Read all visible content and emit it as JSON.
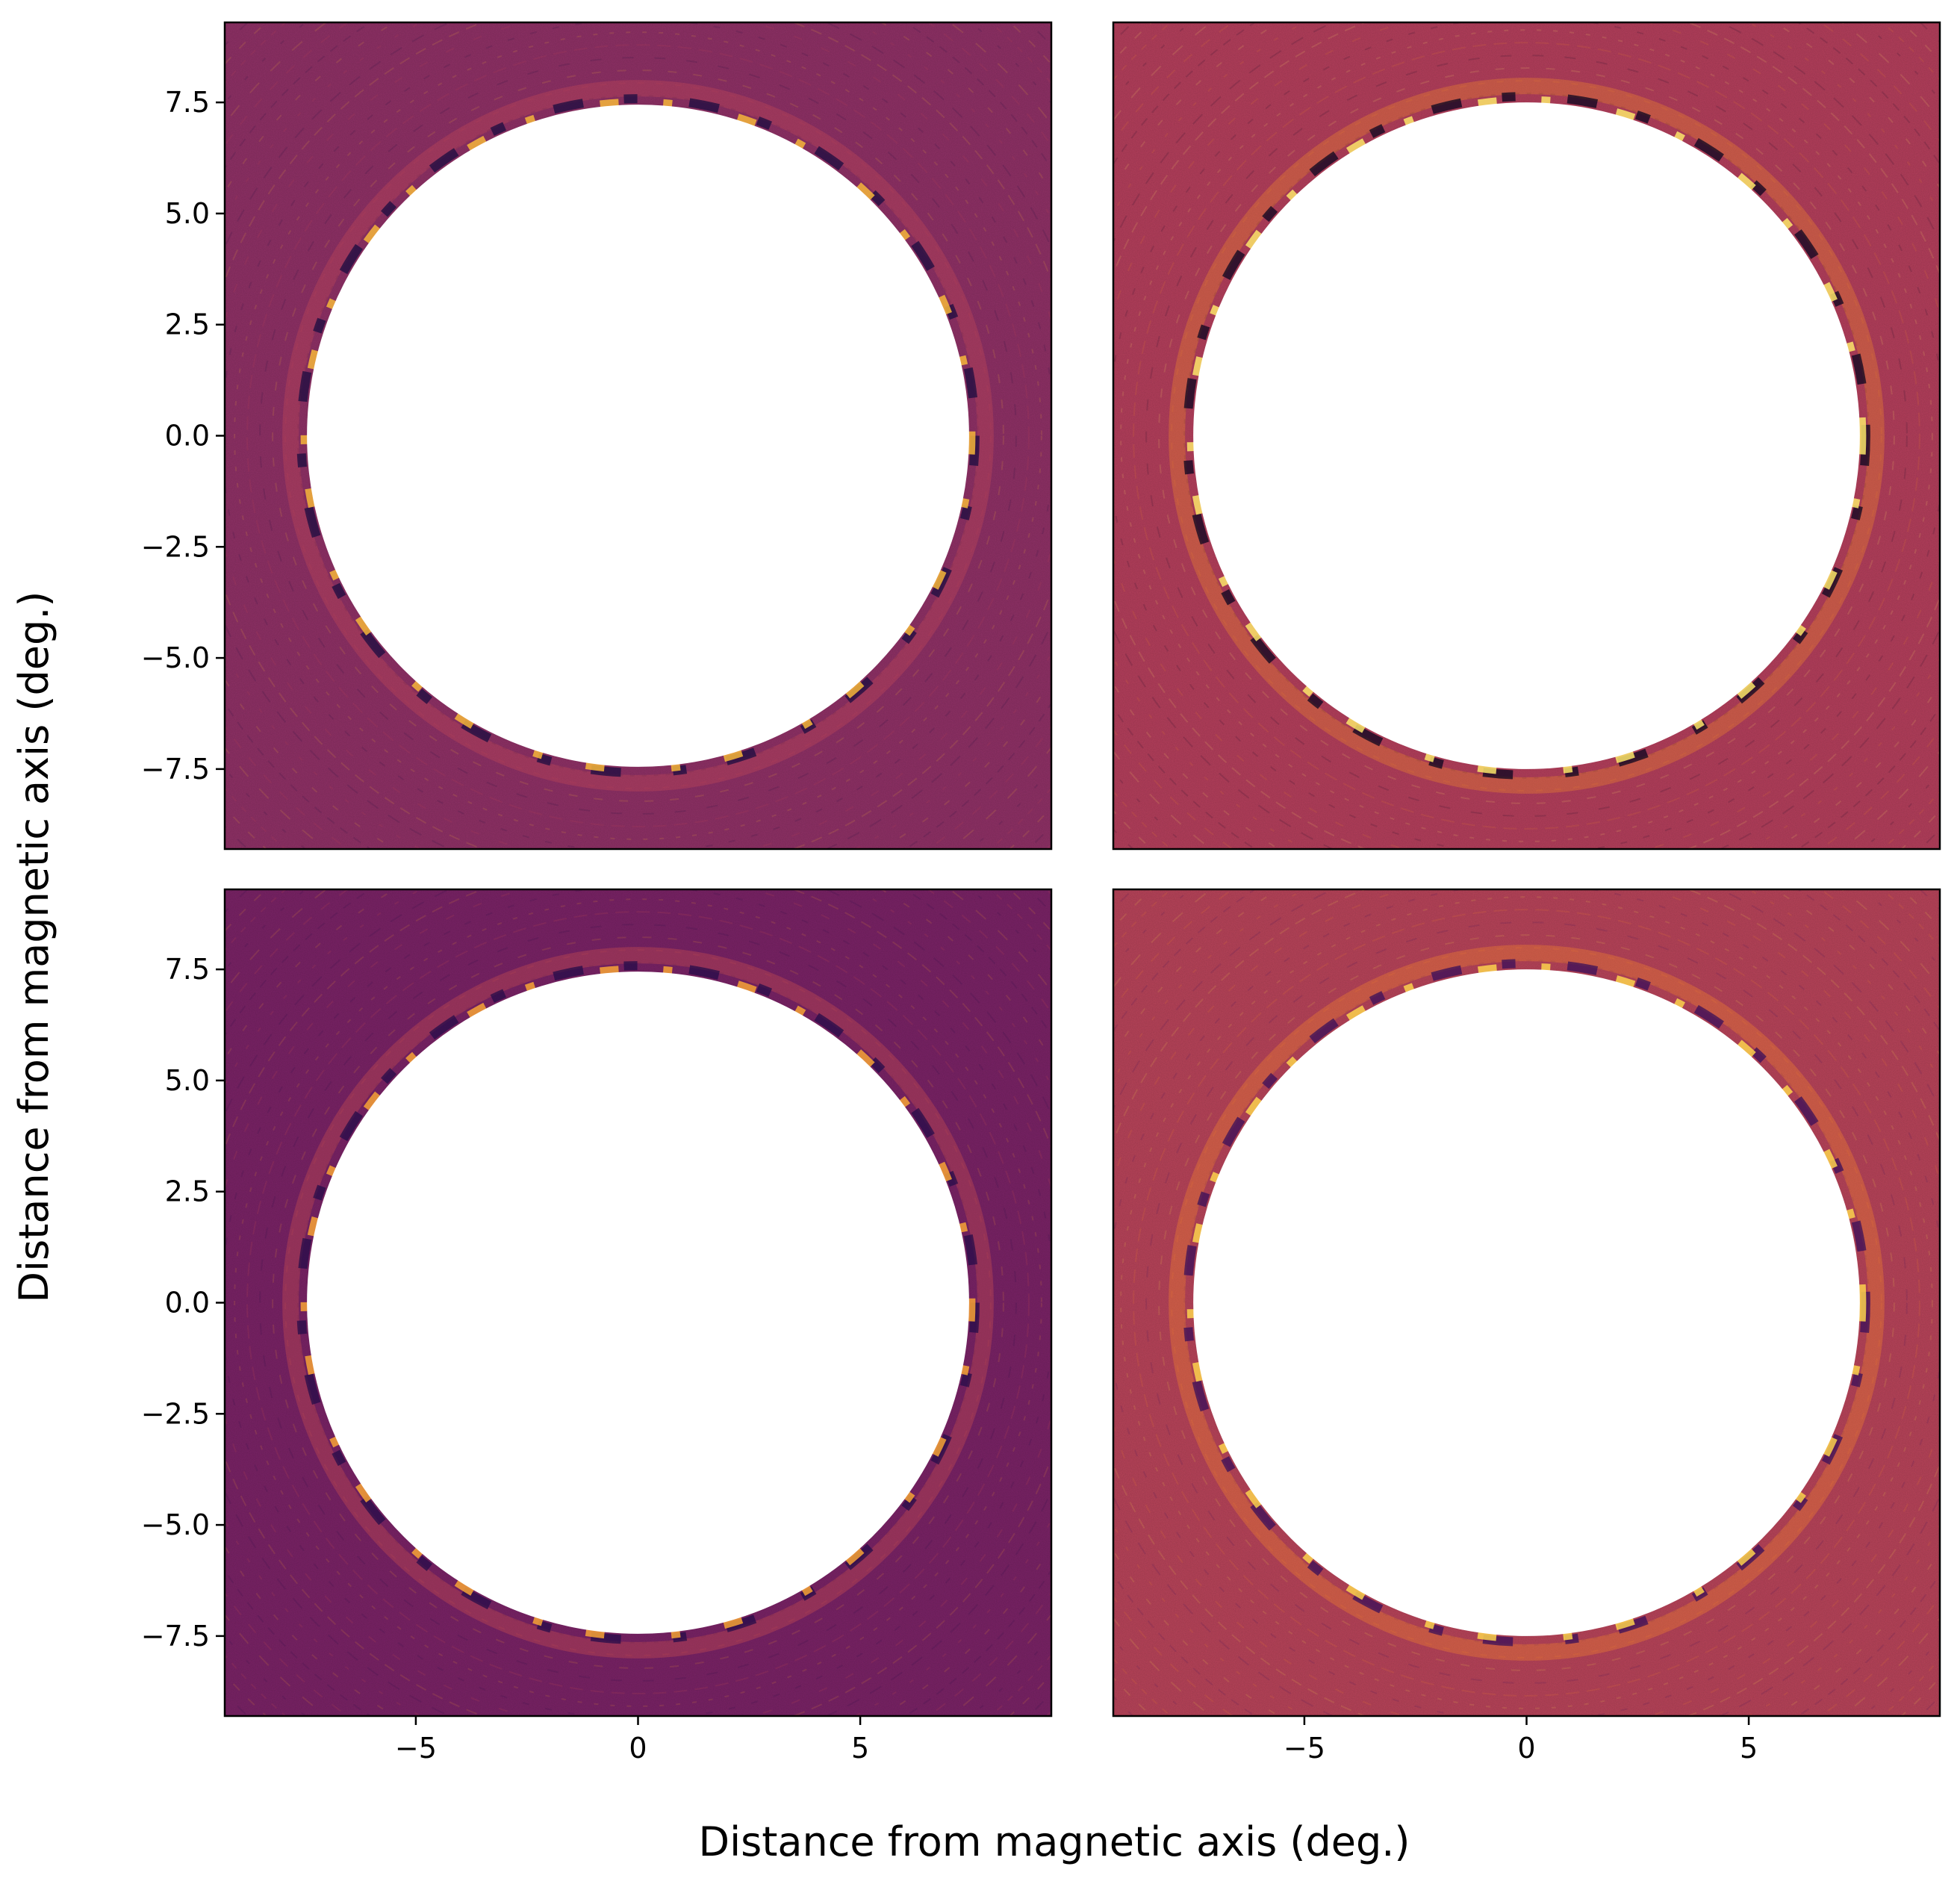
{
  "figure": {
    "xlabel": "Distance from magnetic axis (deg.)",
    "ylabel": "Distance from magnetic axis (deg.)"
  },
  "chart_data": [
    {
      "type": "heatmap",
      "panel": "top-left",
      "xlim": [
        -9.3,
        9.3
      ],
      "ylim": [
        -9.3,
        9.3
      ],
      "xticks": [],
      "yticks": [
        7.5,
        5.0,
        2.5,
        0.0,
        -2.5,
        -5.0,
        -7.5
      ],
      "yticklabels": [
        "7.5",
        "5.0",
        "2.5",
        "0.0",
        "−2.5",
        "−5.0",
        "−7.5"
      ],
      "masked_disk_radius": 7.45,
      "colormap": "inferno",
      "background_color": "#8f3166",
      "ring_colors": [
        "#f6b63a",
        "#1b0c40",
        "#c64a55"
      ],
      "grid": false
    },
    {
      "type": "heatmap",
      "panel": "top-right",
      "xlim": [
        -9.3,
        9.3
      ],
      "ylim": [
        -9.3,
        9.3
      ],
      "xticks": [],
      "yticks": [],
      "masked_disk_radius": 7.5,
      "colormap": "inferno",
      "background_color": "#b43f5c",
      "ring_colors": [
        "#fce66a",
        "#0b0620",
        "#f08a2a"
      ],
      "grid": false
    },
    {
      "type": "heatmap",
      "panel": "bottom-left",
      "xlim": [
        -9.3,
        9.3
      ],
      "ylim": [
        -9.3,
        9.3
      ],
      "xticks": [
        -5,
        0,
        5
      ],
      "xticklabels": [
        "−5",
        "0",
        "5"
      ],
      "yticks": [
        7.5,
        5.0,
        2.5,
        0.0,
        -2.5,
        -5.0,
        -7.5
      ],
      "yticklabels": [
        "7.5",
        "5.0",
        "2.5",
        "0.0",
        "−2.5",
        "−5.0",
        "−7.5"
      ],
      "masked_disk_radius": 7.45,
      "colormap": "inferno",
      "background_color": "#7a2366",
      "ring_colors": [
        "#f7a335",
        "#250c4a",
        "#d1524e"
      ],
      "grid": false
    },
    {
      "type": "heatmap",
      "panel": "bottom-right",
      "xlim": [
        -9.3,
        9.3
      ],
      "ylim": [
        -9.3,
        9.3
      ],
      "xticks": [
        -5,
        0,
        5
      ],
      "xticklabels": [
        "−5",
        "0",
        "5"
      ],
      "yticks": [],
      "masked_disk_radius": 7.5,
      "colormap": "inferno",
      "background_color": "#b8445a",
      "ring_colors": [
        "#fbd24c",
        "#3a0f5a",
        "#f5872a"
      ],
      "grid": false
    }
  ]
}
